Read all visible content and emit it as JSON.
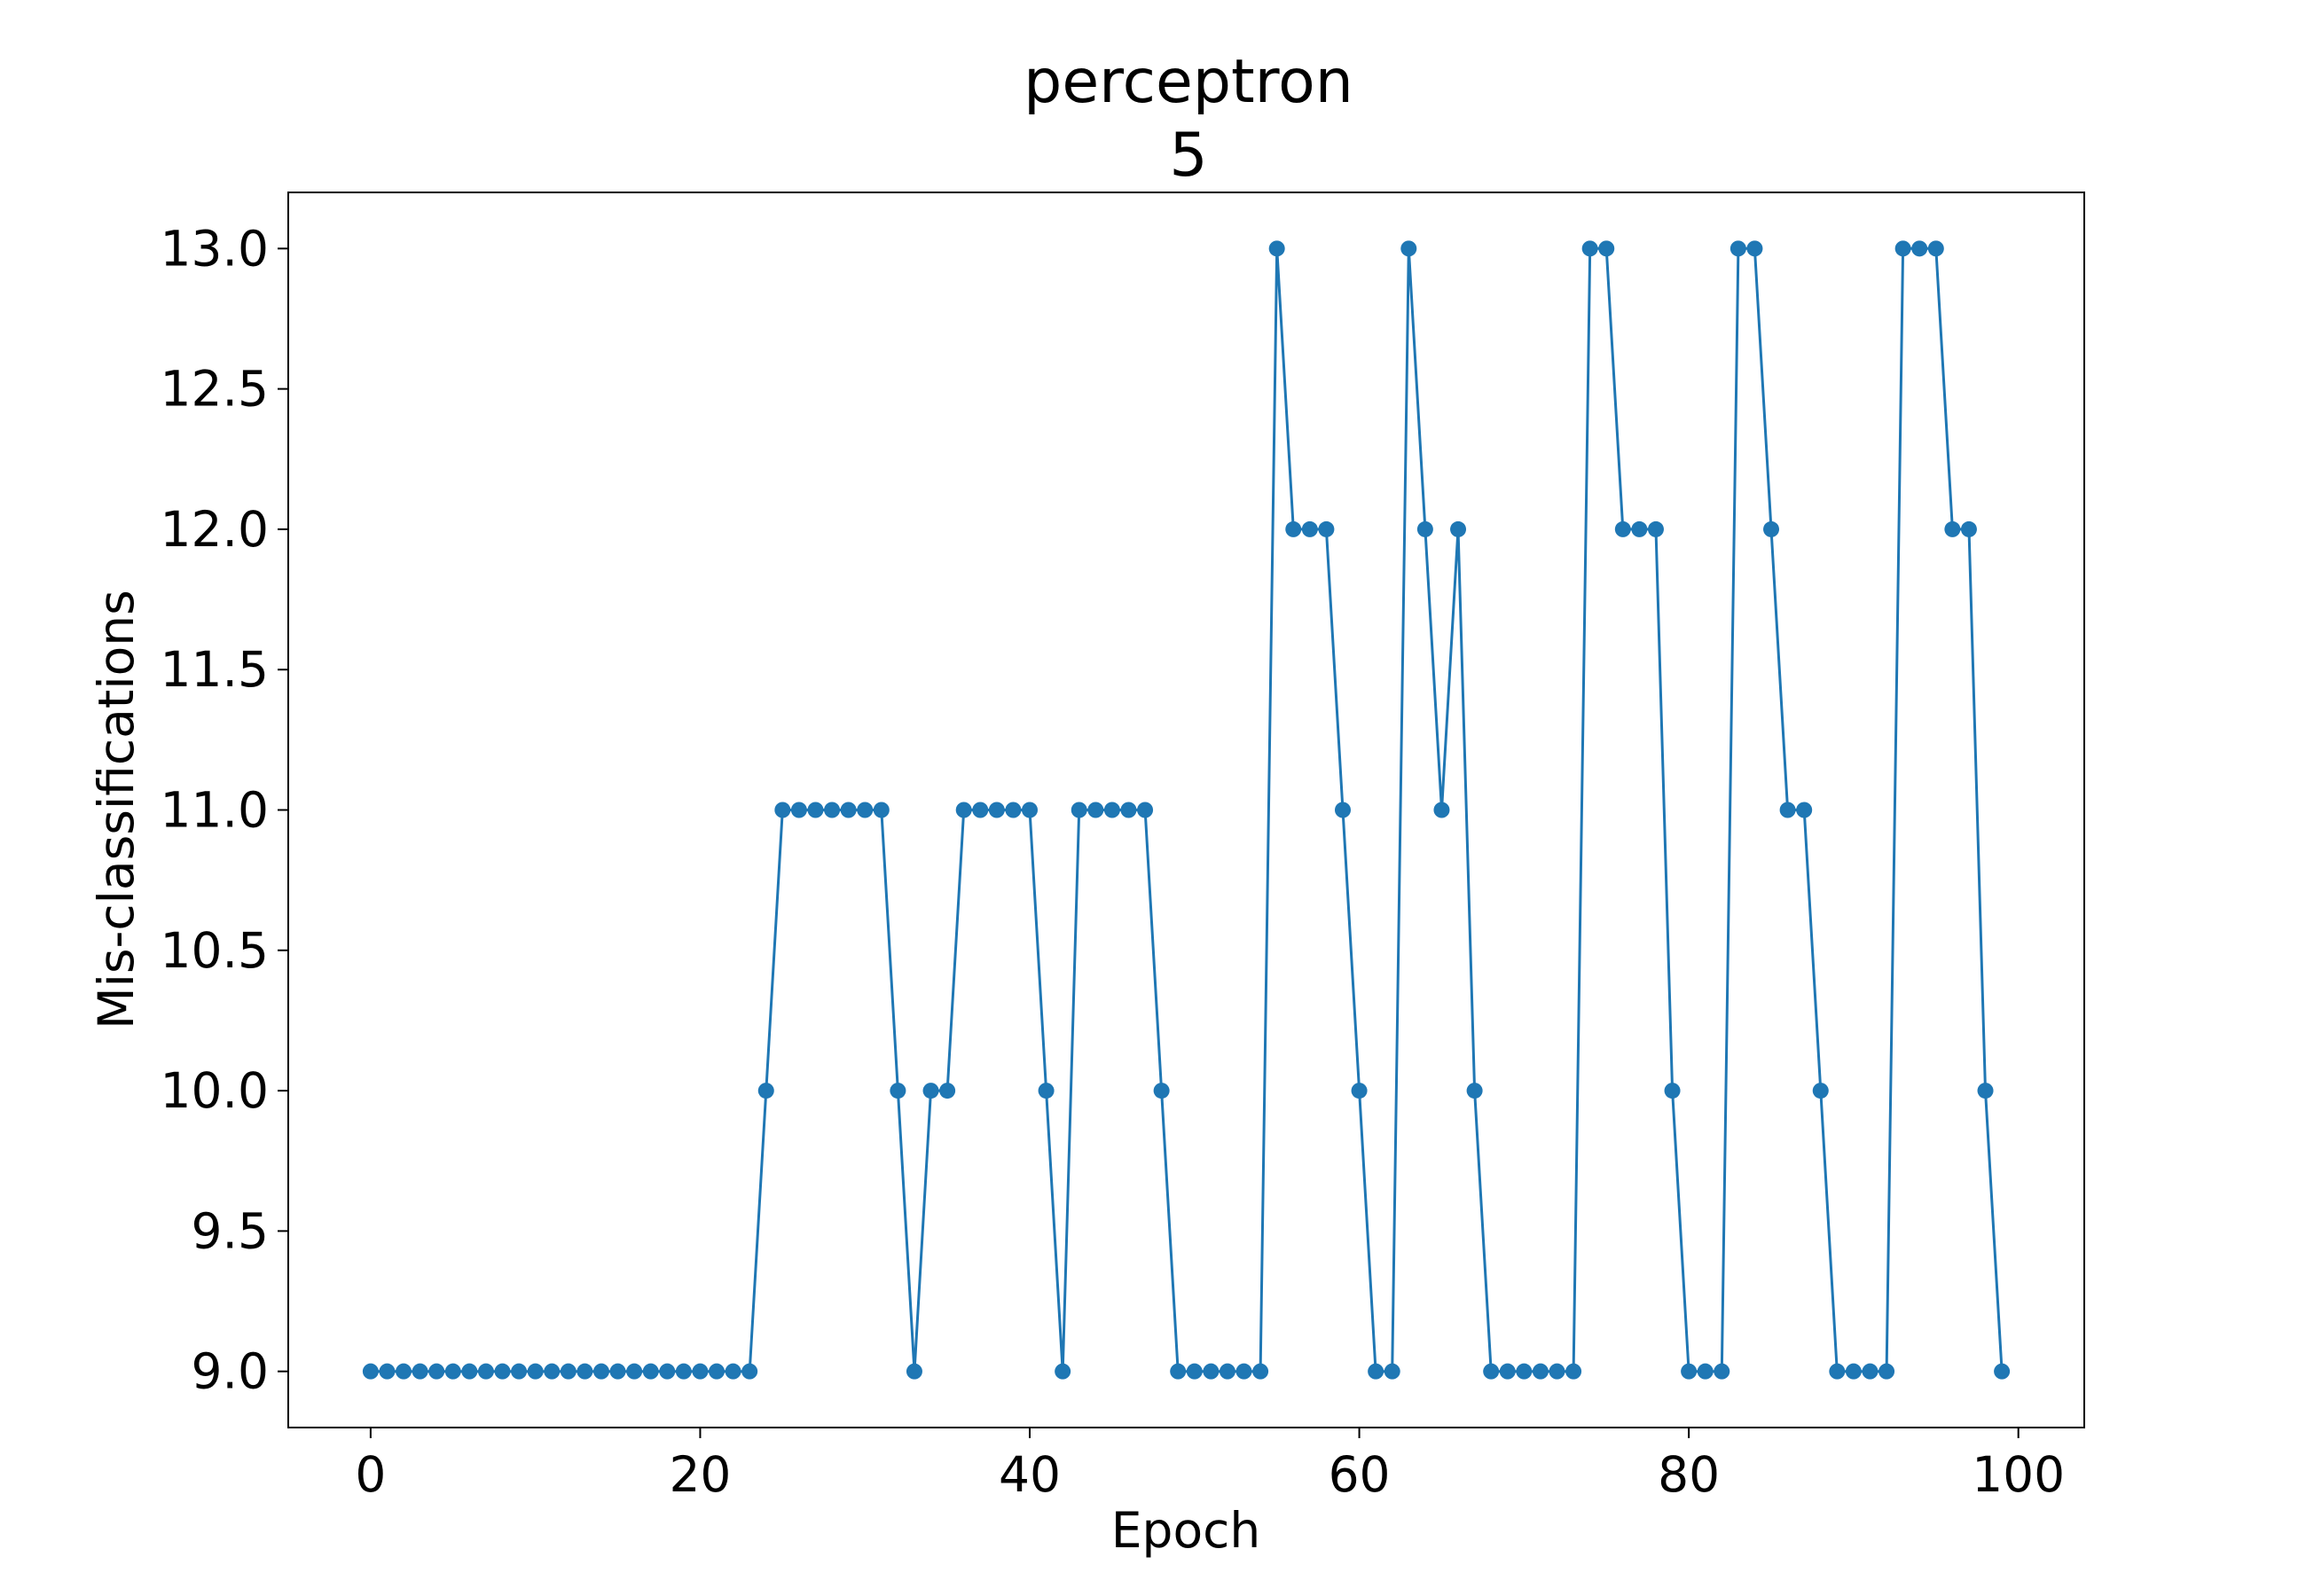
{
  "chart_data": {
    "type": "line",
    "title": "perceptron",
    "subtitle": "5",
    "xlabel": "Epoch",
    "ylabel": "Mis-classifications",
    "xlim": [
      -5,
      104
    ],
    "ylim": [
      8.8,
      13.2
    ],
    "xticks": [
      0,
      20,
      40,
      60,
      80,
      100
    ],
    "yticks": [
      9.0,
      9.5,
      10.0,
      10.5,
      11.0,
      11.5,
      12.0,
      12.5,
      13.0
    ],
    "grid": false,
    "color": "#1f77b4",
    "series": [
      {
        "x": [
          0,
          1,
          2,
          3,
          4,
          5,
          6,
          7,
          8,
          9,
          10,
          11,
          12,
          13,
          14,
          15,
          16,
          17,
          18,
          19,
          20,
          21,
          22,
          23,
          24,
          25,
          26,
          27,
          28,
          29,
          30,
          31,
          32,
          33,
          34,
          35,
          36,
          37,
          38,
          39,
          40,
          41,
          42,
          43,
          44,
          45,
          46,
          47,
          48,
          49,
          50,
          51,
          52,
          53,
          54,
          55,
          56,
          57,
          58,
          59,
          60,
          61,
          62,
          63,
          64,
          65,
          66,
          67,
          68,
          69,
          70,
          71,
          72,
          73,
          74,
          75,
          76,
          77,
          78,
          79,
          80,
          81,
          82,
          83,
          84,
          85,
          86,
          87,
          88,
          89,
          90,
          91,
          92,
          93,
          94,
          95,
          96,
          97,
          98,
          99
        ],
        "y": [
          9,
          9,
          9,
          9,
          9,
          9,
          9,
          9,
          9,
          9,
          9,
          9,
          9,
          9,
          9,
          9,
          9,
          9,
          9,
          9,
          9,
          9,
          9,
          9,
          10,
          11,
          11,
          11,
          11,
          11,
          11,
          11,
          10,
          9,
          10,
          10,
          11,
          11,
          11,
          11,
          11,
          10,
          9,
          11,
          11,
          11,
          11,
          11,
          10,
          9,
          9,
          9,
          9,
          9,
          9,
          13,
          12,
          12,
          12,
          11,
          10,
          9,
          9,
          13,
          12,
          11,
          12,
          10,
          9,
          9,
          9,
          9,
          9,
          9,
          13,
          13,
          12,
          12,
          12,
          10,
          9,
          9,
          9,
          13,
          13,
          12,
          11,
          11,
          10,
          9,
          9,
          9,
          9,
          13,
          13,
          13,
          12,
          12,
          10,
          9
        ]
      }
    ]
  }
}
